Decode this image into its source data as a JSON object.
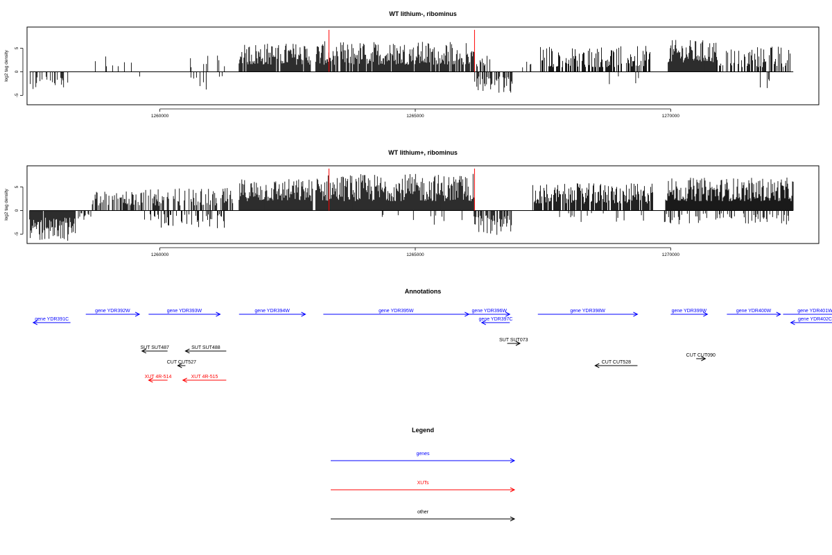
{
  "chart_data": [
    {
      "type": "bar",
      "title": "WT lithium-, ribominus",
      "ylabel": "log2 tag density",
      "xlabel": "",
      "xlim": [
        1257400,
        1272900
      ],
      "ylim": [
        -7,
        9.5
      ],
      "y_ticks": [
        -5,
        0,
        5
      ],
      "x_ticks": [
        1260000,
        1265000,
        1270000
      ],
      "x_tick_labels": [
        "1260000",
        "1265000",
        "1270000"
      ],
      "grid": false,
      "marker_color": "#ff0000",
      "bar_color": "#000000",
      "markers_x": [
        1263310,
        1266160
      ],
      "segments": [
        {
          "start": 1257450,
          "end": 1258200,
          "min": -4.2,
          "max": -0.8,
          "density": 0.35
        },
        {
          "start": 1258600,
          "end": 1259550,
          "min": 0.8,
          "max": 3.5,
          "density": 0.15
        },
        {
          "start": 1259550,
          "end": 1259900,
          "min": -1.5,
          "max": -0.5,
          "density": 0.05
        },
        {
          "start": 1260450,
          "end": 1261350,
          "min": 0.8,
          "max": 3.8,
          "density": 0.2
        },
        {
          "start": 1260500,
          "end": 1261350,
          "min": -3.8,
          "max": -0.8,
          "density": 0.12
        },
        {
          "start": 1261550,
          "end": 1262950,
          "min": 1.5,
          "max": 6.2,
          "density": 0.95
        },
        {
          "start": 1263050,
          "end": 1266150,
          "min": 1.5,
          "max": 6.5,
          "density": 0.9
        },
        {
          "start": 1266150,
          "end": 1266900,
          "min": -4.8,
          "max": -1,
          "density": 0.6
        },
        {
          "start": 1266200,
          "end": 1266550,
          "min": 1,
          "max": 3.5,
          "density": 0.3
        },
        {
          "start": 1267100,
          "end": 1267350,
          "min": 0.8,
          "max": 3.5,
          "density": 0.2
        },
        {
          "start": 1267450,
          "end": 1269600,
          "min": 1,
          "max": 5.5,
          "density": 0.65
        },
        {
          "start": 1268800,
          "end": 1269450,
          "min": -3.8,
          "max": -0.8,
          "density": 0.08
        },
        {
          "start": 1269950,
          "end": 1270900,
          "min": 2,
          "max": 6.8,
          "density": 0.98
        },
        {
          "start": 1270900,
          "end": 1272350,
          "min": 1,
          "max": 5.5,
          "density": 0.6
        },
        {
          "start": 1271700,
          "end": 1272000,
          "min": -3.5,
          "max": -1,
          "density": 0.05
        }
      ]
    },
    {
      "type": "bar",
      "title": "WT lithium+, ribominus",
      "ylabel": "log2 tag density",
      "xlabel": "",
      "xlim": [
        1257400,
        1272900
      ],
      "ylim": [
        -7,
        9.5
      ],
      "y_ticks": [
        -5,
        0,
        5
      ],
      "x_ticks": [
        1260000,
        1265000,
        1270000
      ],
      "x_tick_labels": [
        "1260000",
        "1265000",
        "1270000"
      ],
      "grid": false,
      "marker_color": "#ff0000",
      "bar_color": "#000000",
      "markers_x": [
        1263310,
        1266160
      ],
      "segments": [
        {
          "start": 1257450,
          "end": 1258350,
          "min": -6.6,
          "max": -1.5,
          "density": 0.95
        },
        {
          "start": 1258350,
          "end": 1258650,
          "min": -2,
          "max": -0.5,
          "density": 0.4
        },
        {
          "start": 1258650,
          "end": 1260300,
          "min": 1,
          "max": 4.5,
          "density": 0.55
        },
        {
          "start": 1259700,
          "end": 1261300,
          "min": -3.8,
          "max": -0.8,
          "density": 0.35
        },
        {
          "start": 1260300,
          "end": 1261450,
          "min": 1,
          "max": 4.8,
          "density": 0.6
        },
        {
          "start": 1261550,
          "end": 1263000,
          "min": 2,
          "max": 6.8,
          "density": 1
        },
        {
          "start": 1263050,
          "end": 1266150,
          "min": 2,
          "max": 7.8,
          "density": 1
        },
        {
          "start": 1264000,
          "end": 1266000,
          "min": -3.2,
          "max": -0.8,
          "density": 0.12
        },
        {
          "start": 1266150,
          "end": 1266900,
          "min": -5.2,
          "max": -1,
          "density": 0.75
        },
        {
          "start": 1267300,
          "end": 1269650,
          "min": 1.5,
          "max": 5.8,
          "density": 0.85
        },
        {
          "start": 1267500,
          "end": 1269650,
          "min": -2.5,
          "max": -0.5,
          "density": 0.1
        },
        {
          "start": 1269900,
          "end": 1272400,
          "min": 2,
          "max": 7,
          "density": 1
        },
        {
          "start": 1269850,
          "end": 1272400,
          "min": -3,
          "max": -0.6,
          "density": 0.25
        }
      ]
    }
  ],
  "annotations": {
    "title": "Annotations",
    "features": [
      {
        "label": "gene YDR391C",
        "start": 1258250,
        "end": 1257520,
        "row": 0,
        "color": "#0000ff"
      },
      {
        "label": "gene YDR392W",
        "start": 1258550,
        "end": 1259600,
        "row": 1,
        "color": "#0000ff"
      },
      {
        "label": "gene YDR393W",
        "start": 1259780,
        "end": 1261180,
        "row": 1,
        "color": "#0000ff"
      },
      {
        "label": "gene YDR394W",
        "start": 1261550,
        "end": 1262850,
        "row": 1,
        "color": "#0000ff"
      },
      {
        "label": "gene YDR395W",
        "start": 1263200,
        "end": 1266050,
        "row": 1,
        "color": "#0000ff"
      },
      {
        "label": "gene YDR396W",
        "start": 1266050,
        "end": 1266850,
        "row": 1,
        "color": "#0000ff"
      },
      {
        "label": "gene YDR397C",
        "start": 1266850,
        "end": 1266300,
        "row": 2,
        "color": "#0000ff"
      },
      {
        "label": "gene YDR398W",
        "start": 1267400,
        "end": 1269350,
        "row": 1,
        "color": "#0000ff"
      },
      {
        "label": "gene YDR399W",
        "start": 1270000,
        "end": 1270720,
        "row": 1,
        "color": "#0000ff"
      },
      {
        "label": "gene YDR400W",
        "start": 1271100,
        "end": 1272150,
        "row": 1,
        "color": "#0000ff"
      },
      {
        "label": "gene YDR401W",
        "start": 1272200,
        "end": 1273450,
        "row": 1,
        "color": "#0000ff"
      },
      {
        "label": "gene YDR402C",
        "start": 1273300,
        "end": 1272350,
        "row": 2,
        "color": "#0000ff"
      },
      {
        "label": "SUT SUT487",
        "start": 1260150,
        "end": 1259650,
        "row": 3,
        "color": "#000000"
      },
      {
        "label": "SUT SUT488",
        "start": 1261300,
        "end": 1260500,
        "row": 3,
        "color": "#000000"
      },
      {
        "label": "SUT SUT073",
        "start": 1266800,
        "end": 1267050,
        "row": 4,
        "color": "#000000"
      },
      {
        "label": "CUT CUT527",
        "start": 1260500,
        "end": 1260350,
        "row": 5,
        "color": "#000000"
      },
      {
        "label": "CUT CUT528",
        "start": 1269350,
        "end": 1268520,
        "row": 6,
        "color": "#000000"
      },
      {
        "label": "CUT CUT090",
        "start": 1270500,
        "end": 1270680,
        "row": 7,
        "color": "#000000"
      },
      {
        "label": "XUT 4R-514",
        "start": 1260150,
        "end": 1259780,
        "row": 8,
        "color": "#ff0000"
      },
      {
        "label": "XUT 4R-515",
        "start": 1261300,
        "end": 1260450,
        "row": 8,
        "color": "#ff0000"
      }
    ]
  },
  "legend": {
    "title": "Legend",
    "items": [
      {
        "label": "genes",
        "color": "#0000ff"
      },
      {
        "label": "XUTs",
        "color": "#ff0000"
      },
      {
        "label": "other",
        "color": "#000000"
      }
    ]
  }
}
